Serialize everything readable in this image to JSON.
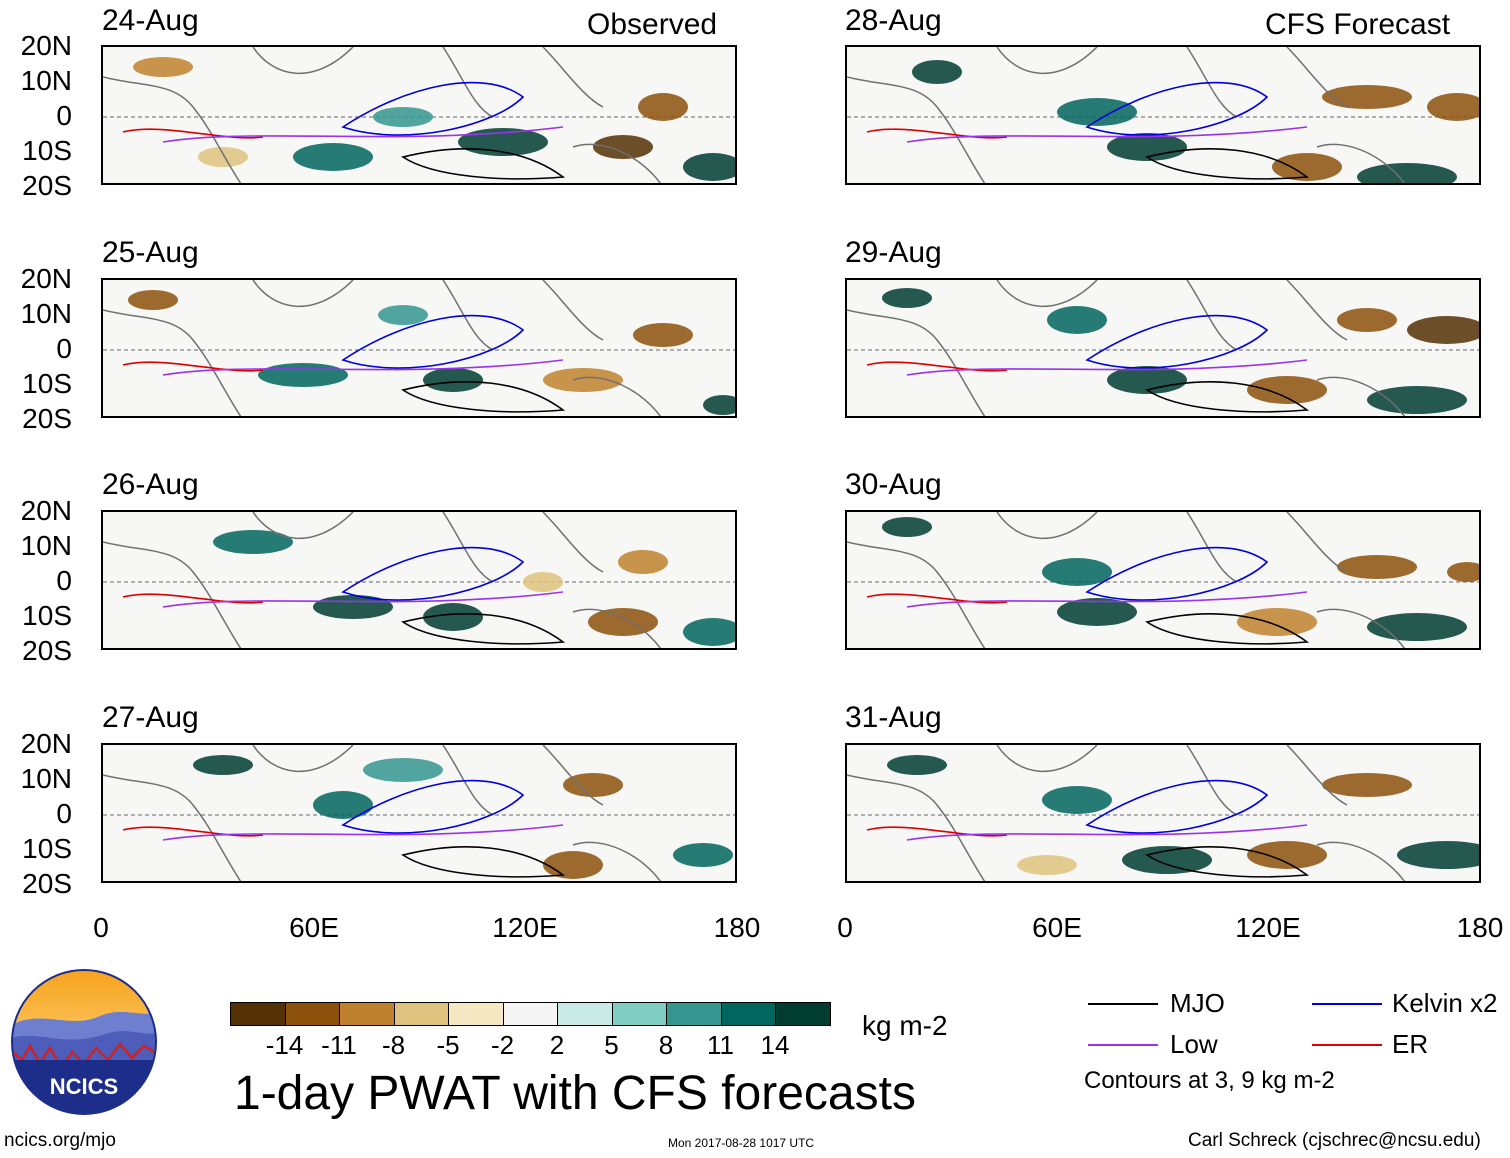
{
  "title": "1-day PWAT with CFS forecasts",
  "observed_label": "Observed",
  "forecast_label": "CFS Forecast",
  "observed_dates": [
    "24-Aug",
    "25-Aug",
    "26-Aug",
    "27-Aug"
  ],
  "forecast_dates": [
    "28-Aug",
    "29-Aug",
    "30-Aug",
    "31-Aug"
  ],
  "lat_ticks": [
    "20N",
    "10N",
    "0",
    "10S",
    "20S"
  ],
  "lon_ticks": [
    "0",
    "60E",
    "120E",
    "180"
  ],
  "colorbar": {
    "unit": "kg m-2",
    "labels": [
      "-14",
      "-11",
      "-8",
      "-5",
      "-2",
      "2",
      "5",
      "8",
      "11",
      "14"
    ],
    "colors": [
      "#543005",
      "#8c510a",
      "#bf812d",
      "#dfc27d",
      "#f6e8c3",
      "#f5f5f5",
      "#c7eae5",
      "#80cdc1",
      "#35978f",
      "#01665e",
      "#003c30"
    ]
  },
  "legend": {
    "items": [
      {
        "label": "MJO",
        "color": "#000000"
      },
      {
        "label": "Kelvin x2",
        "color": "#0000dd"
      },
      {
        "label": "Low",
        "color": "#9933ee"
      },
      {
        "label": "ER",
        "color": "#dd0000"
      }
    ],
    "note": "Contours at 3, 9 kg m-2"
  },
  "logo_text": "NCICS",
  "footer": {
    "website": "ncics.org/mjo",
    "timestamp": "Mon 2017-08-28 1017 UTC",
    "author": "Carl Schreck (cjschrec@ncsu.edu)"
  }
}
